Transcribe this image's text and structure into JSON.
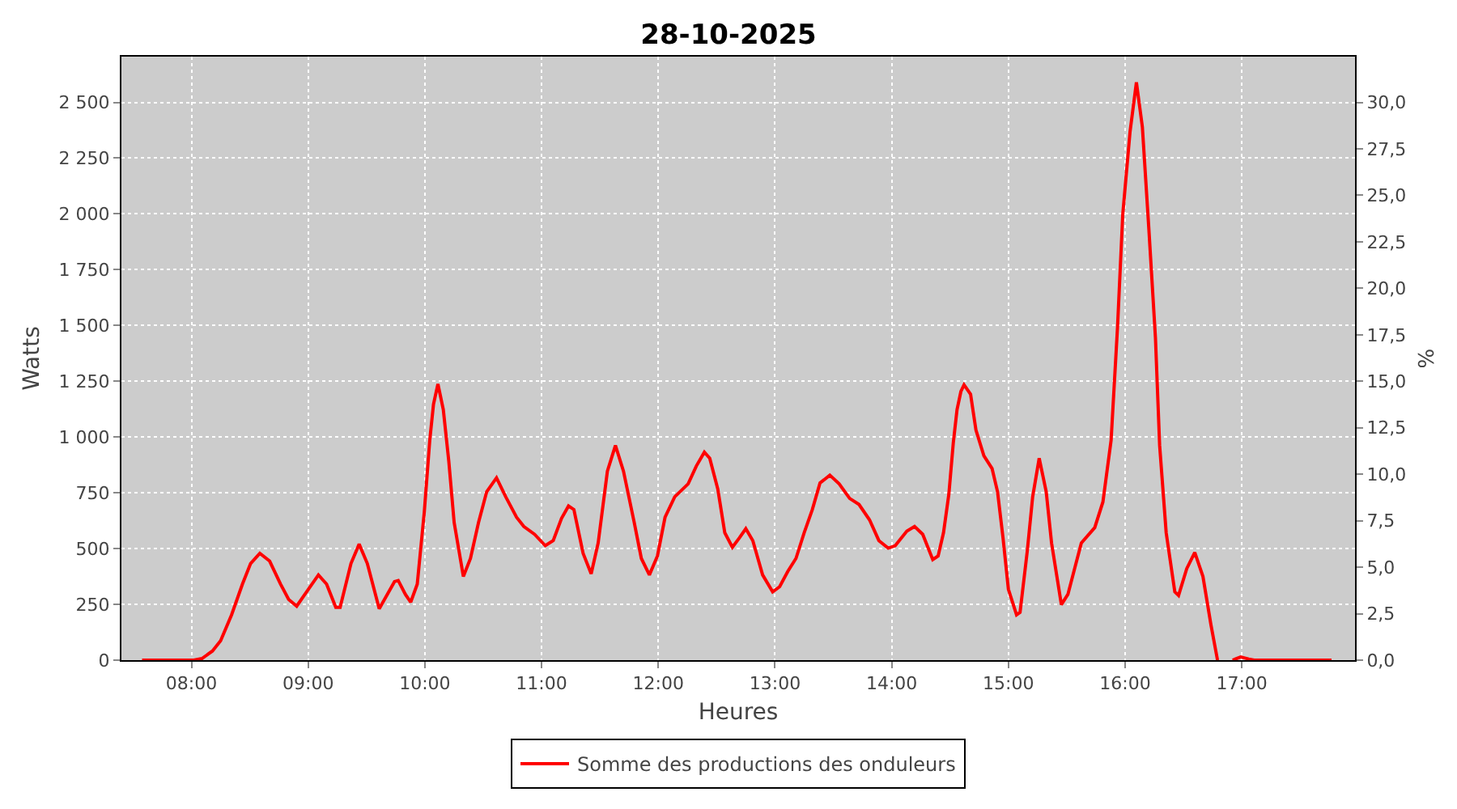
{
  "chart_data": {
    "type": "line",
    "title": "28-10-2025",
    "xlabel": "Heures",
    "ylabel": "Watts",
    "y2label": "%",
    "x": [
      7.577,
      8.02,
      8.09,
      8.18,
      8.25,
      8.344,
      8.437,
      8.507,
      8.586,
      8.67,
      8.763,
      8.833,
      8.902,
      8.972,
      9.088,
      9.158,
      9.237,
      9.274,
      9.367,
      9.437,
      9.507,
      9.609,
      9.74,
      9.772,
      9.833,
      9.879,
      9.935,
      9.995,
      10.042,
      10.074,
      10.112,
      10.158,
      10.205,
      10.251,
      10.33,
      10.391,
      10.46,
      10.53,
      10.614,
      10.693,
      10.786,
      10.848,
      10.94,
      11.032,
      11.1,
      11.171,
      11.231,
      11.277,
      11.356,
      11.425,
      11.485,
      11.564,
      11.633,
      11.702,
      11.794,
      11.855,
      11.924,
      11.993,
      12.058,
      12.141,
      12.256,
      12.326,
      12.395,
      12.441,
      12.51,
      12.57,
      12.635,
      12.695,
      12.75,
      12.81,
      12.894,
      12.98,
      13.04,
      13.11,
      13.18,
      13.25,
      13.32,
      13.386,
      13.47,
      13.55,
      13.64,
      13.72,
      13.81,
      13.89,
      13.97,
      14.03,
      14.13,
      14.196,
      14.266,
      14.352,
      14.398,
      14.444,
      14.49,
      14.528,
      14.56,
      14.593,
      14.62,
      14.676,
      14.722,
      14.79,
      14.86,
      14.907,
      14.954,
      15.0,
      15.07,
      15.1,
      15.162,
      15.208,
      15.264,
      15.324,
      15.37,
      15.454,
      15.51,
      15.579,
      15.625,
      15.74,
      15.81,
      15.88,
      15.935,
      15.98,
      16.042,
      16.097,
      16.148,
      16.204,
      16.26,
      16.296,
      16.352,
      16.426,
      16.458,
      16.528,
      16.597,
      16.667,
      16.736,
      16.792,
      16.85,
      16.921,
      16.99,
      17.06,
      17.106,
      17.769
    ],
    "series": [
      {
        "name": "Somme des productions des onduleurs",
        "color": "#ff0000",
        "values": [
          0,
          0,
          7,
          41,
          87,
          203,
          341,
          433,
          479,
          444,
          341,
          272,
          242,
          295,
          382,
          341,
          237,
          237,
          433,
          520,
          433,
          230,
          352,
          357,
          295,
          260,
          341,
          663,
          985,
          1146,
          1238,
          1123,
          893,
          617,
          375,
          456,
          617,
          755,
          817,
          732,
          640,
          599,
          564,
          513,
          536,
          635,
          691,
          675,
          479,
          387,
          525,
          847,
          962,
          847,
          617,
          456,
          382,
          467,
          640,
          732,
          790,
          870,
          932,
          905,
          767,
          571,
          506,
          548,
          589,
          536,
          382,
          306,
          329,
          398,
          456,
          571,
          675,
          794,
          829,
          790,
          725,
          698,
          629,
          536,
          502,
          513,
          578,
          599,
          564,
          451,
          467,
          571,
          744,
          974,
          1123,
          1204,
          1234,
          1192,
          1031,
          916,
          859,
          755,
          548,
          318,
          203,
          214,
          490,
          732,
          905,
          755,
          525,
          249,
          295,
          433,
          525,
          594,
          709,
          985,
          1492,
          1998,
          2367,
          2590,
          2390,
          1929,
          1446,
          962,
          571,
          306,
          290,
          410,
          483,
          375,
          157,
          0,
          null,
          0,
          14,
          5,
          0,
          0
        ]
      }
    ],
    "xlim": [
      7.4,
      17.97
    ],
    "xticks": [
      {
        "value": 8,
        "label": "08:00"
      },
      {
        "value": 9,
        "label": "09:00"
      },
      {
        "value": 10,
        "label": "10:00"
      },
      {
        "value": 11,
        "label": "11:00"
      },
      {
        "value": 12,
        "label": "12:00"
      },
      {
        "value": 13,
        "label": "13:00"
      },
      {
        "value": 14,
        "label": "14:00"
      },
      {
        "value": 15,
        "label": "15:00"
      },
      {
        "value": 16,
        "label": "16:00"
      },
      {
        "value": 17,
        "label": "17:00"
      }
    ],
    "ylim": [
      0,
      2705
    ],
    "yticks": [
      0,
      250,
      500,
      750,
      {
        "value": 1000,
        "label": "1 000"
      },
      {
        "value": 1250,
        "label": "1 250"
      },
      {
        "value": 1500,
        "label": "1 500"
      },
      {
        "value": 1750,
        "label": "1 750"
      },
      {
        "value": 2000,
        "label": "2 000"
      },
      {
        "value": 2250,
        "label": "2 250"
      },
      {
        "value": 2500,
        "label": "2 500"
      }
    ],
    "y2lim": [
      0,
      32.46
    ],
    "y2ticks": [
      {
        "value": 0,
        "label": "0,0"
      },
      {
        "value": 2.5,
        "label": "2,5"
      },
      {
        "value": 5,
        "label": "5,0"
      },
      {
        "value": 7.5,
        "label": "7,5"
      },
      {
        "value": 10,
        "label": "10,0"
      },
      {
        "value": 12.5,
        "label": "12,5"
      },
      {
        "value": 15,
        "label": "15,0"
      },
      {
        "value": 17.5,
        "label": "17,5"
      },
      {
        "value": 20,
        "label": "20,0"
      },
      {
        "value": 22.5,
        "label": "22,5"
      },
      {
        "value": 25,
        "label": "25,0"
      },
      {
        "value": 27.5,
        "label": "27,5"
      },
      {
        "value": 30,
        "label": "30,0"
      }
    ],
    "grid": true,
    "legend": "bottom",
    "line_style": "solid"
  }
}
